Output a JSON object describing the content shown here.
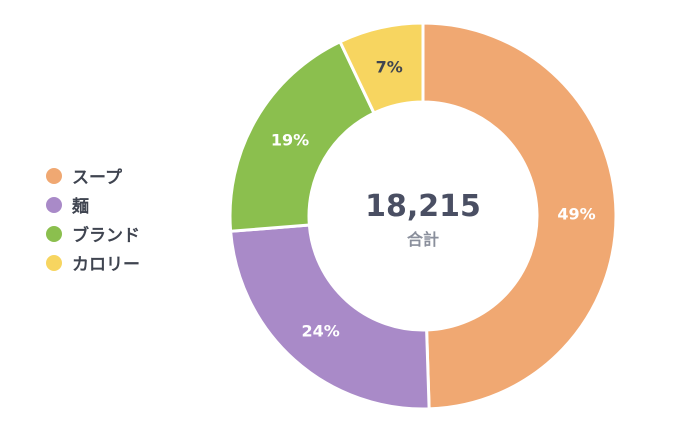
{
  "chart_data": {
    "type": "pie",
    "variant": "donut",
    "categories": [
      "スープ",
      "麺",
      "ブランド",
      "カロリー"
    ],
    "values": [
      49,
      24,
      19,
      7
    ],
    "value_labels": [
      "49%",
      "24%",
      "19%",
      "7%"
    ],
    "colors": [
      "#f0a872",
      "#a98ac8",
      "#8bbf4e",
      "#f7d560"
    ],
    "label_colors": [
      "#ffffff",
      "#ffffff",
      "#ffffff",
      "#3f4450"
    ],
    "center_value": "18,215",
    "center_label": "合計",
    "legend_placement": "left"
  }
}
